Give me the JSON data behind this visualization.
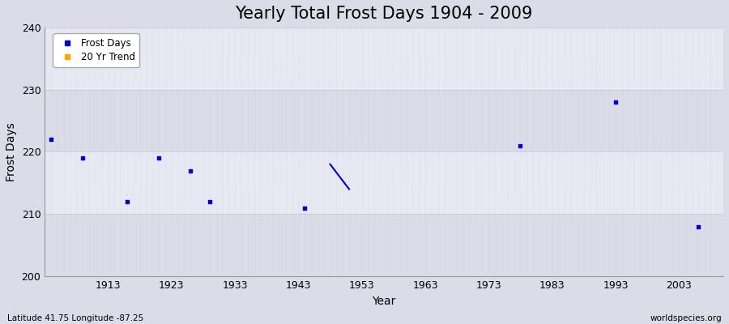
{
  "title": "Yearly Total Frost Days 1904 - 2009",
  "xlabel": "Year",
  "ylabel": "Frost Days",
  "bottom_left_label": "Latitude 41.75 Longitude -87.25",
  "bottom_right_label": "worldspecies.org",
  "xlim": [
    1903,
    2010
  ],
  "ylim": [
    200,
    240
  ],
  "yticks": [
    200,
    210,
    220,
    230,
    240
  ],
  "xticks": [
    1913,
    1923,
    1933,
    1943,
    1953,
    1963,
    1973,
    1983,
    1993,
    2003
  ],
  "scatter_x": [
    1904,
    1909,
    1916,
    1921,
    1926,
    1929,
    1944,
    1978,
    1993,
    2006
  ],
  "scatter_y": [
    222,
    219,
    212,
    219,
    217,
    212,
    211,
    221,
    228,
    208
  ],
  "trend_x": [
    1948,
    1951
  ],
  "trend_y": [
    218,
    214
  ],
  "scatter_color": "#0000cc",
  "trend_color": "#0000cc",
  "background_color": "#dcdce8",
  "plot_bg_even": "#dcdce8",
  "plot_bg_odd": "#e8e8f2",
  "title_fontsize": 15,
  "label_fontsize": 10,
  "tick_fontsize": 9,
  "legend_marker_color_scatter": "#0000cc",
  "legend_marker_color_trend": "#ffa500"
}
